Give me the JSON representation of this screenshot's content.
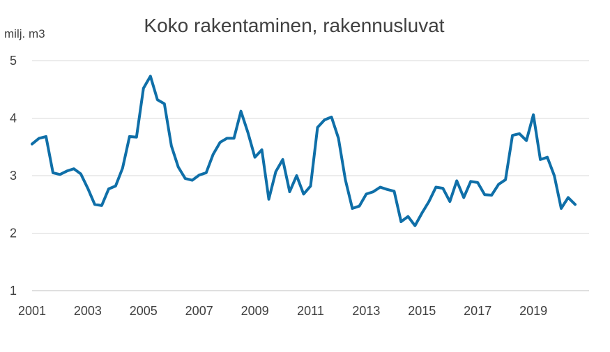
{
  "colors": {
    "series": "#0f6fa8"
  },
  "chart_data": {
    "type": "line",
    "title": "Koko rakentaminen, rakennusluvat",
    "ylabel": "milj. m3",
    "xlabel": "",
    "ylim": [
      1,
      5
    ],
    "xlim": [
      2001,
      2021
    ],
    "yticks": [
      "1",
      "2",
      "3",
      "4",
      "5"
    ],
    "xticks": [
      "2001",
      "2003",
      "2005",
      "2007",
      "2009",
      "2011",
      "2013",
      "2015",
      "2017",
      "2019"
    ],
    "grid": true,
    "legend": "none",
    "series": [
      {
        "x": [
          2001.0,
          2001.25,
          2001.5,
          2001.75,
          2002.0,
          2002.25,
          2002.5,
          2002.75,
          2003.0,
          2003.25,
          2003.5,
          2003.75,
          2004.0,
          2004.25,
          2004.5,
          2004.75,
          2005.0,
          2005.25,
          2005.5,
          2005.75,
          2006.0,
          2006.25,
          2006.5,
          2006.75,
          2007.0,
          2007.25,
          2007.5,
          2007.75,
          2008.0,
          2008.25,
          2008.5,
          2008.75,
          2009.0,
          2009.25,
          2009.5,
          2009.75,
          2010.0,
          2010.25,
          2010.5,
          2010.75,
          2011.0,
          2011.25,
          2011.5,
          2011.75,
          2012.0,
          2012.25,
          2012.5,
          2012.75,
          2013.0,
          2013.25,
          2013.5,
          2013.75,
          2014.0,
          2014.25,
          2014.5,
          2014.75,
          2015.0,
          2015.25,
          2015.5,
          2015.75,
          2016.0,
          2016.25,
          2016.5,
          2016.75,
          2017.0,
          2017.25,
          2017.5,
          2017.75,
          2018.0,
          2018.25,
          2018.5,
          2018.75,
          2019.0,
          2019.25,
          2019.5,
          2019.75,
          2020.0,
          2020.25,
          2020.5
        ],
        "values": [
          3.55,
          3.65,
          3.68,
          3.05,
          3.02,
          3.08,
          3.12,
          3.03,
          2.78,
          2.5,
          2.48,
          2.77,
          2.82,
          3.13,
          3.68,
          3.67,
          4.52,
          4.73,
          4.32,
          4.25,
          3.52,
          3.15,
          2.95,
          2.92,
          3.01,
          3.05,
          3.37,
          3.58,
          3.65,
          3.65,
          4.12,
          3.75,
          3.32,
          3.45,
          2.59,
          3.07,
          3.28,
          2.72,
          3.0,
          2.68,
          2.82,
          3.84,
          3.97,
          4.02,
          3.65,
          2.93,
          2.43,
          2.47,
          2.68,
          2.72,
          2.8,
          2.76,
          2.73,
          2.2,
          2.29,
          2.13,
          2.35,
          2.55,
          2.8,
          2.78,
          2.55,
          2.91,
          2.62,
          2.9,
          2.88,
          2.67,
          2.66,
          2.85,
          2.93,
          3.7,
          3.73,
          3.61,
          4.06,
          3.28,
          3.32,
          3.0,
          2.43,
          2.62,
          2.5
        ]
      }
    ]
  }
}
